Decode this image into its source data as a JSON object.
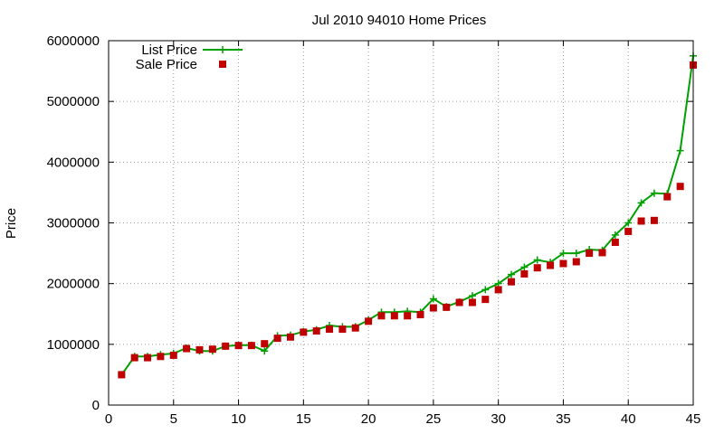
{
  "chart_data": {
    "type": "line",
    "title": "Jul 2010 94010 Home Prices",
    "xlabel": "",
    "ylabel": "Price",
    "xlim": [
      0,
      45
    ],
    "ylim": [
      0,
      6000000
    ],
    "x_ticks": [
      0,
      5,
      10,
      15,
      20,
      25,
      30,
      35,
      40,
      45
    ],
    "y_ticks": [
      0,
      1000000,
      2000000,
      3000000,
      4000000,
      5000000,
      6000000
    ],
    "grid": true,
    "legend_position": "top-left",
    "x": [
      1,
      2,
      3,
      4,
      5,
      6,
      7,
      8,
      9,
      10,
      11,
      12,
      13,
      14,
      15,
      16,
      17,
      18,
      19,
      20,
      21,
      22,
      23,
      24,
      25,
      26,
      27,
      28,
      29,
      30,
      31,
      32,
      33,
      34,
      35,
      36,
      37,
      38,
      39,
      40,
      41,
      42,
      43,
      44,
      45
    ],
    "series": [
      {
        "name": "List Price",
        "style": "linespoints",
        "color": "#00a000",
        "values": [
          500000,
          800000,
          800000,
          830000,
          850000,
          940000,
          890000,
          890000,
          970000,
          985000,
          985000,
          890000,
          1140000,
          1150000,
          1210000,
          1240000,
          1310000,
          1290000,
          1290000,
          1400000,
          1530000,
          1530000,
          1545000,
          1530000,
          1750000,
          1620000,
          1700000,
          1800000,
          1900000,
          2000000,
          2150000,
          2270000,
          2390000,
          2350000,
          2500000,
          2500000,
          2560000,
          2550000,
          2800000,
          3000000,
          3330000,
          3490000,
          3480000,
          4190000,
          5750000
        ]
      },
      {
        "name": "Sale Price",
        "style": "points",
        "color": "#c00000",
        "values": [
          500000,
          780000,
          780000,
          800000,
          820000,
          930000,
          910000,
          920000,
          970000,
          980000,
          980000,
          1010000,
          1100000,
          1120000,
          1200000,
          1220000,
          1250000,
          1250000,
          1270000,
          1380000,
          1470000,
          1470000,
          1470000,
          1490000,
          1600000,
          1610000,
          1690000,
          1690000,
          1740000,
          1900000,
          2030000,
          2160000,
          2260000,
          2300000,
          2330000,
          2360000,
          2500000,
          2510000,
          2680000,
          2860000,
          3030000,
          3040000,
          3430000,
          3600000,
          5600000
        ]
      }
    ]
  }
}
